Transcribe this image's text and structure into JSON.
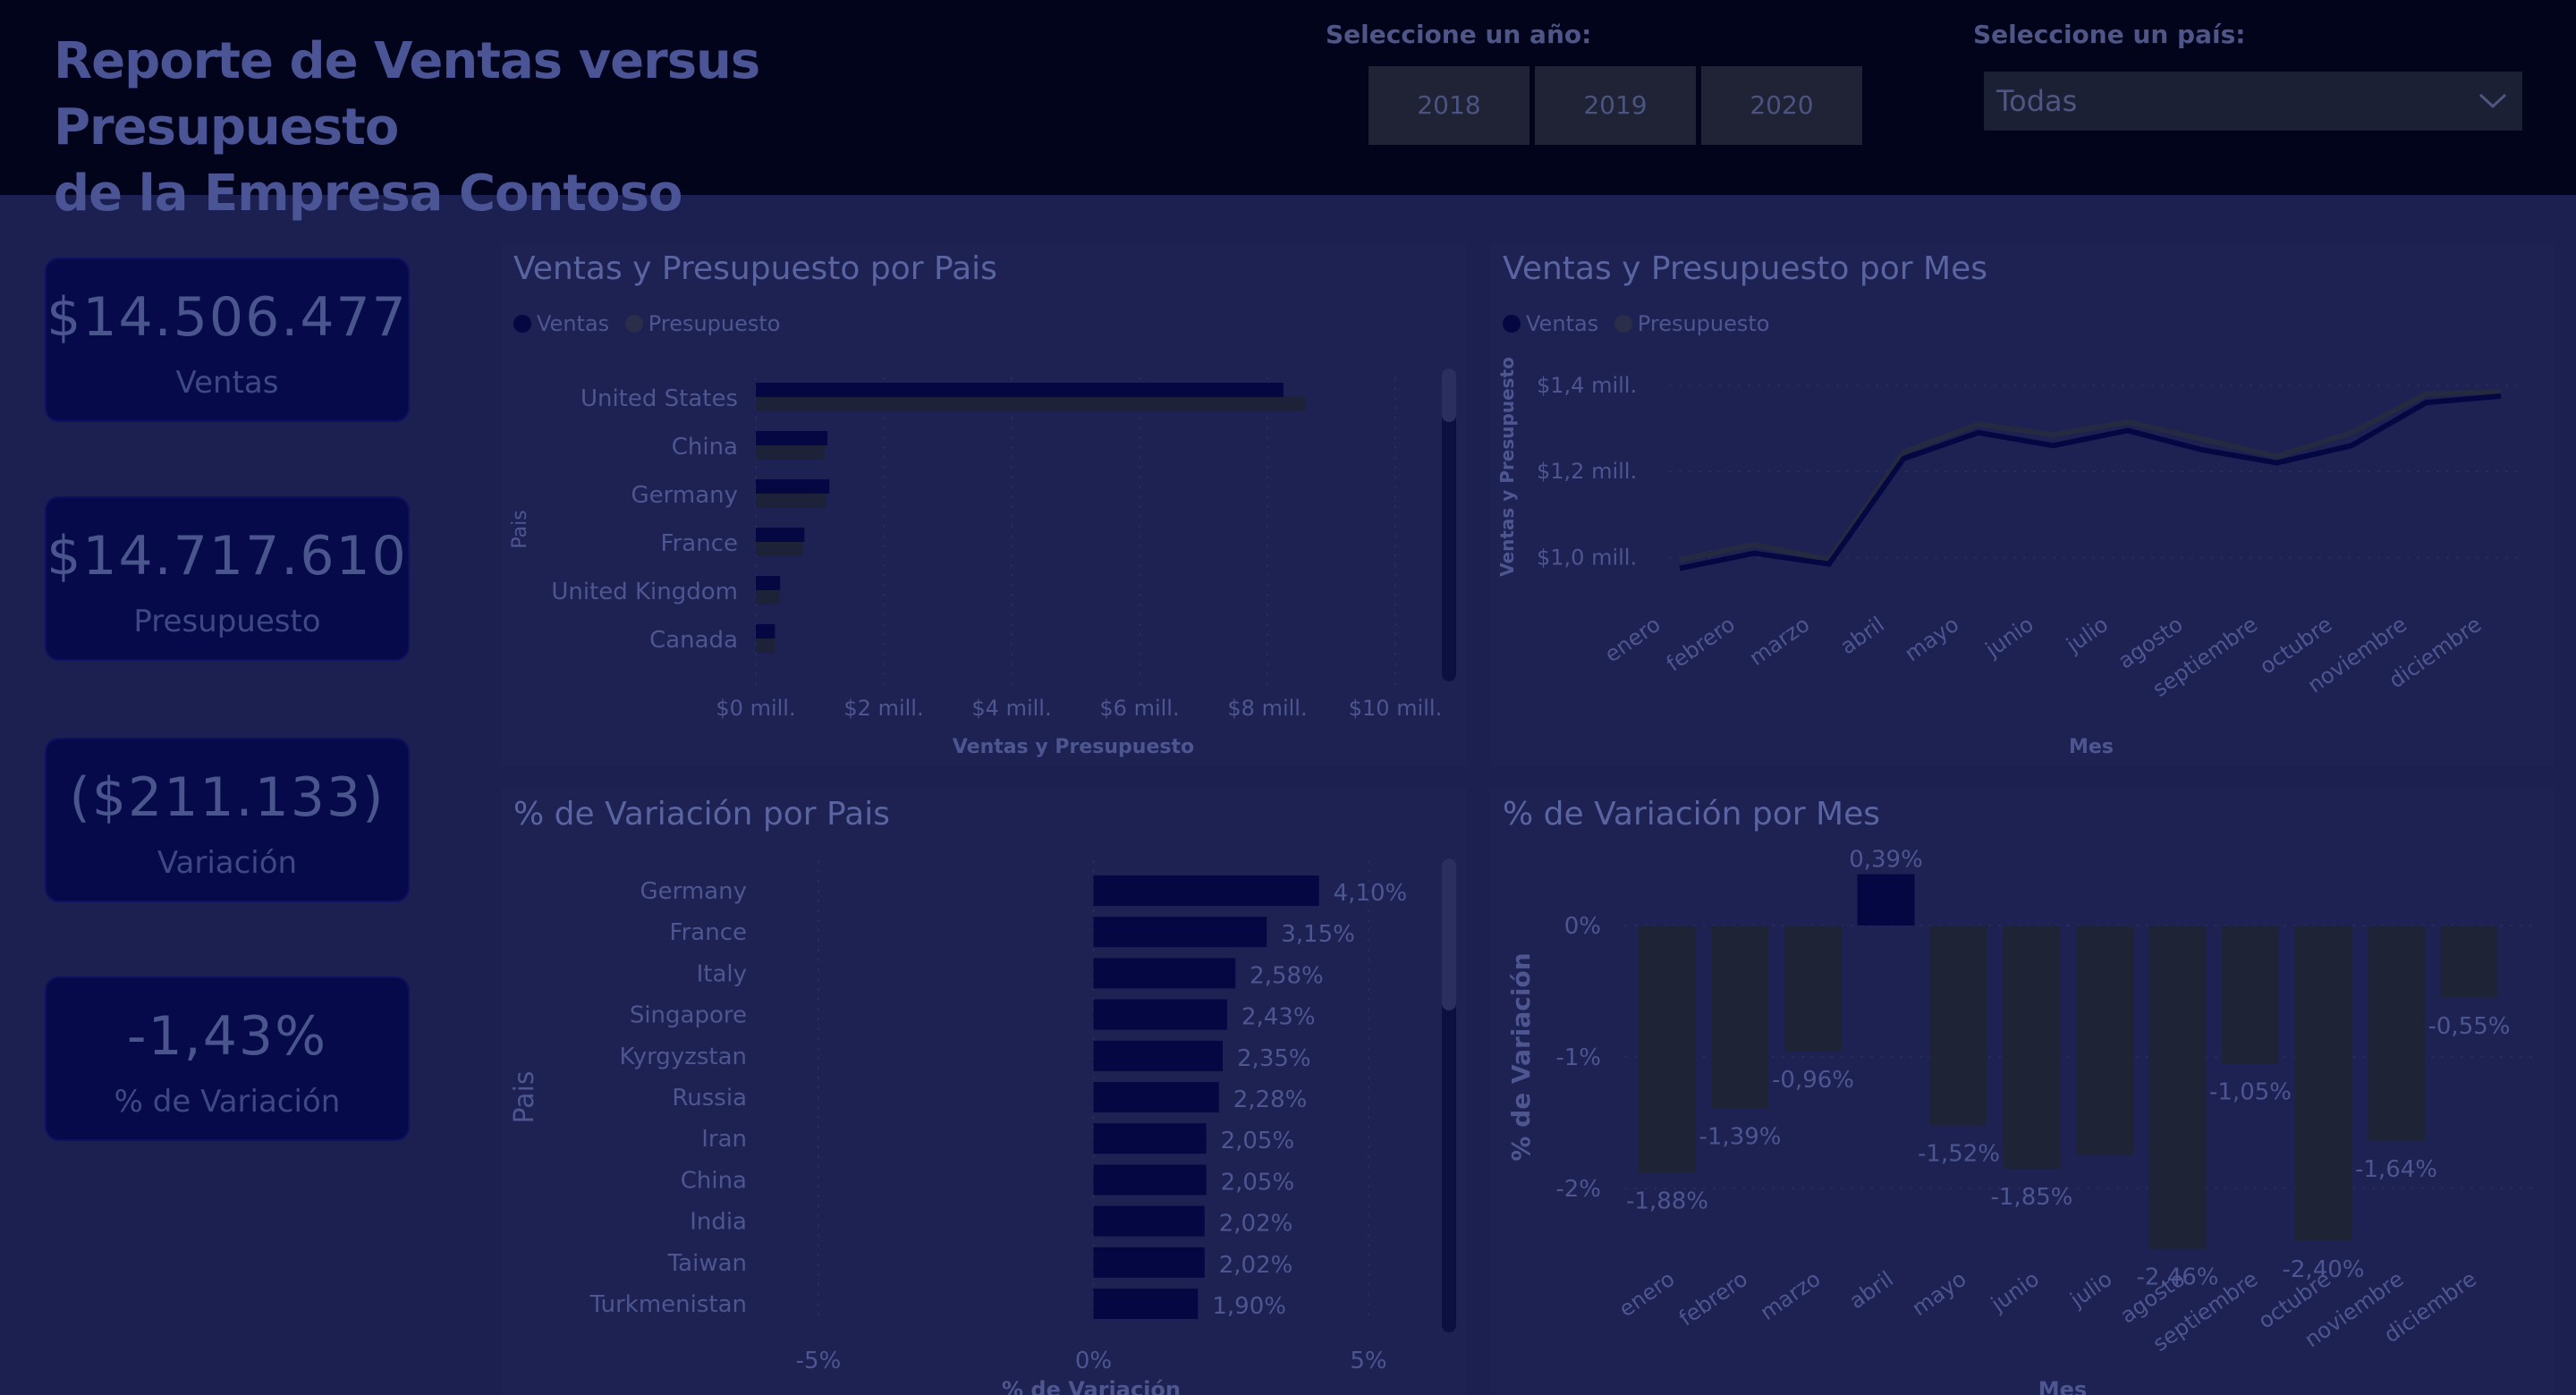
{
  "header": {
    "title_line1": "Reporte de Ventas versus Presupuesto",
    "title_line2": "de la Empresa Contoso",
    "year_label": "Seleccione un año:",
    "years": [
      "2018",
      "2019",
      "2020"
    ],
    "country_label": "Seleccione un país:",
    "country_value": "Todas"
  },
  "kpis": [
    {
      "value": "$14.506.477",
      "label": "Ventas"
    },
    {
      "value": "$14.717.610",
      "label": "Presupuesto"
    },
    {
      "value": "($211.133)",
      "label": "Variación"
    },
    {
      "value": "-1,43%",
      "label": "% de Variación"
    }
  ],
  "colors": {
    "ventas": "#040742",
    "presupuesto": "#1e2238",
    "bar_neg": "#1f2336",
    "bar_pos": "#040742"
  },
  "chart_data": [
    {
      "type": "bar",
      "orientation": "horizontal",
      "title": "Ventas y Presupuesto por Pais",
      "xlabel": "Ventas y Presupuesto",
      "ylabel": "Pais",
      "legend": [
        "Ventas",
        "Presupuesto"
      ],
      "categories": [
        "United States",
        "China",
        "Germany",
        "France",
        "United Kingdom",
        "Canada"
      ],
      "series": [
        {
          "name": "Ventas",
          "values": [
            8.25,
            1.12,
            1.15,
            0.76,
            0.38,
            0.3
          ]
        },
        {
          "name": "Presupuesto",
          "values": [
            8.6,
            1.08,
            1.1,
            0.74,
            0.37,
            0.3
          ]
        }
      ],
      "xticks": [
        "$0 mill.",
        "$2 mill.",
        "$4 mill.",
        "$6 mill.",
        "$8 mill.",
        "$10 mill."
      ],
      "xlim": [
        0,
        10
      ],
      "legend_position": "top-left"
    },
    {
      "type": "line",
      "title": "Ventas y Presupuesto por Mes",
      "xlabel": "Mes",
      "ylabel": "Ventas y Presupuesto",
      "legend": [
        "Ventas",
        "Presupuesto"
      ],
      "categories": [
        "enero",
        "febrero",
        "marzo",
        "abril",
        "mayo",
        "junio",
        "julio",
        "agosto",
        "septiembre",
        "octubre",
        "noviembre",
        "diciembre"
      ],
      "series": [
        {
          "name": "Ventas",
          "values": [
            0.975,
            1.01,
            0.985,
            1.23,
            1.29,
            1.26,
            1.295,
            1.25,
            1.22,
            1.26,
            1.36,
            1.375
          ]
        },
        {
          "name": "Presupuesto",
          "values": [
            0.995,
            1.03,
            0.995,
            1.245,
            1.31,
            1.285,
            1.315,
            1.275,
            1.235,
            1.29,
            1.38,
            1.385
          ]
        }
      ],
      "yticks": [
        "$1,0 mill.",
        "$1,2 mill.",
        "$1,4 mill."
      ],
      "ylim": [
        0.92,
        1.46
      ],
      "legend_position": "top-left"
    },
    {
      "type": "bar",
      "orientation": "horizontal",
      "title": "% de Variación por Pais",
      "xlabel": "% de Variación",
      "ylabel": "Pais",
      "categories": [
        "Germany",
        "France",
        "Italy",
        "Singapore",
        "Kyrgyzstan",
        "Russia",
        "Iran",
        "China",
        "India",
        "Taiwan",
        "Turkmenistan"
      ],
      "values": [
        4.1,
        3.15,
        2.58,
        2.43,
        2.35,
        2.28,
        2.05,
        2.05,
        2.02,
        2.02,
        1.9
      ],
      "data_labels": [
        "4,10%",
        "3,15%",
        "2,58%",
        "2,43%",
        "2,35%",
        "2,28%",
        "2,05%",
        "2,05%",
        "2,02%",
        "2,02%",
        "1,90%"
      ],
      "xticks": [
        "-5%",
        "0%",
        "5%"
      ],
      "xlim": [
        -5,
        5
      ]
    },
    {
      "type": "bar",
      "title": "% de Variación por Mes",
      "xlabel": "Mes",
      "ylabel": "% de Variación",
      "categories": [
        "enero",
        "febrero",
        "marzo",
        "abril",
        "mayo",
        "junio",
        "julio",
        "agosto",
        "septiembre",
        "octubre",
        "noviembre",
        "diciembre"
      ],
      "values": [
        -1.88,
        -1.39,
        -0.96,
        0.39,
        -1.52,
        -1.85,
        -1.75,
        -2.46,
        -1.05,
        -2.4,
        -1.64,
        -0.55
      ],
      "data_labels": [
        "-1,88%",
        "-1,39%",
        "-0,96%",
        "0,39%",
        "-1,52%",
        "-1,85%",
        "",
        "-2,46%",
        "-1,05%",
        "-2,40%",
        "-1,64%",
        "-0,55%"
      ],
      "yticks": [
        "0%",
        "-1%",
        "-2%"
      ],
      "ylim": [
        -2.6,
        0.4
      ]
    }
  ]
}
